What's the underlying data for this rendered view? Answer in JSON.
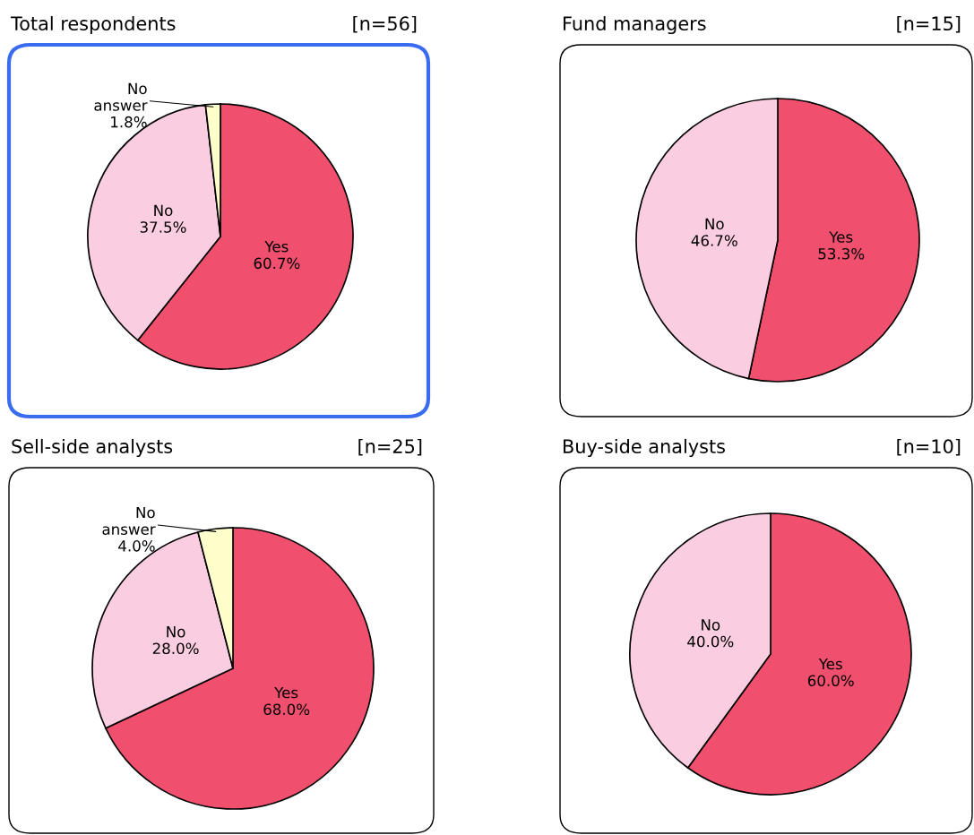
{
  "chart_data": [
    {
      "type": "pie",
      "title": "Total respondents",
      "subtitle": "[n=56]",
      "categories": [
        "Yes",
        "No",
        "No answer"
      ],
      "values": [
        60.7,
        37.5,
        1.8
      ],
      "value_labels": [
        "60.7%",
        "37.5%",
        "1.8%"
      ],
      "colors": [
        "#f0506e",
        "#fbcde0",
        "#ffffcc"
      ]
    },
    {
      "type": "pie",
      "title": "Fund managers",
      "subtitle": "[n=15]",
      "categories": [
        "Yes",
        "No"
      ],
      "values": [
        53.3,
        46.7
      ],
      "value_labels": [
        "53.3%",
        "46.7%"
      ],
      "colors": [
        "#f0506e",
        "#fbcde0"
      ]
    },
    {
      "type": "pie",
      "title": "Sell-side analysts",
      "subtitle": "[n=25]",
      "categories": [
        "Yes",
        "No",
        "No answer"
      ],
      "values": [
        68.0,
        28.0,
        4.0
      ],
      "value_labels": [
        "68.0%",
        "28.0%",
        "4.0%"
      ],
      "colors": [
        "#f0506e",
        "#fbcde0",
        "#ffffcc"
      ]
    },
    {
      "type": "pie",
      "title": "Buy-side analysts",
      "subtitle": "[n=10]",
      "categories": [
        "Yes",
        "No"
      ],
      "values": [
        60.0,
        40.0
      ],
      "value_labels": [
        "60.0%",
        "40.0%"
      ],
      "colors": [
        "#f0506e",
        "#fbcde0"
      ]
    }
  ]
}
